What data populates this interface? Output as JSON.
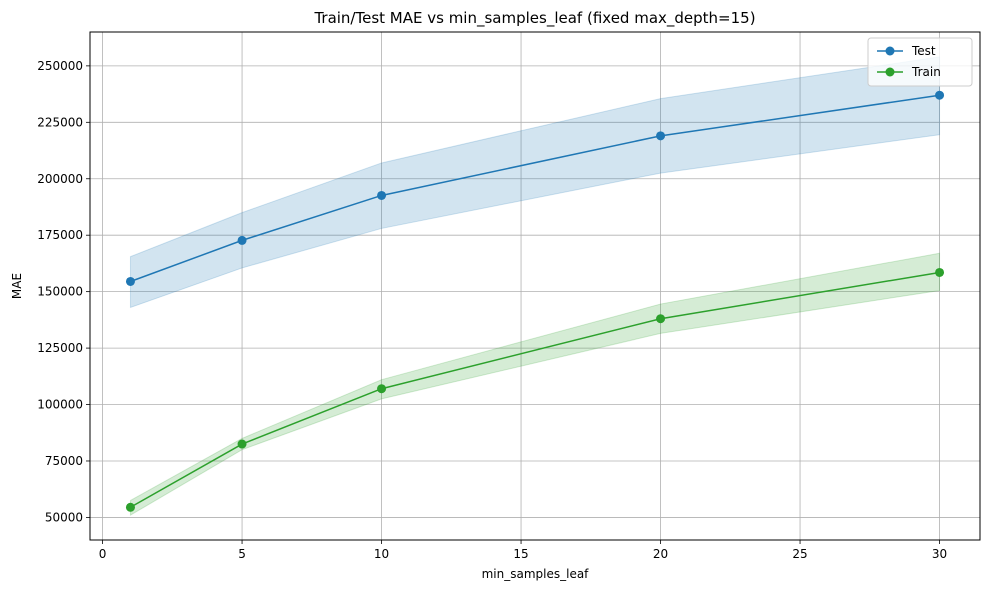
{
  "chart_data": {
    "type": "line",
    "title": "Train/Test MAE vs min_samples_leaf (fixed max_depth=15)",
    "xlabel": "min_samples_leaf",
    "ylabel": "MAE",
    "xlim": [
      -0.45,
      31.45
    ],
    "ylim": [
      40000,
      265000
    ],
    "xticks": [
      0,
      5,
      10,
      15,
      20,
      25,
      30
    ],
    "yticks": [
      50000,
      75000,
      100000,
      125000,
      150000,
      175000,
      200000,
      225000,
      250000
    ],
    "grid": true,
    "legend_position": "top-right",
    "x": [
      1,
      5,
      10,
      20,
      30
    ],
    "series": [
      {
        "name": "Test",
        "color": "#1f77b4",
        "marker": "circle",
        "values": [
          154500,
          172700,
          192600,
          219000,
          237000
        ],
        "band_lower": [
          143000,
          160500,
          178000,
          202500,
          219500
        ],
        "band_upper": [
          165500,
          185000,
          207000,
          235500,
          254000
        ]
      },
      {
        "name": "Train",
        "color": "#2ca02c",
        "marker": "circle",
        "values": [
          54500,
          82500,
          107000,
          138000,
          158500
        ],
        "band_lower": [
          51000,
          80000,
          102500,
          131500,
          150500
        ],
        "band_upper": [
          57500,
          85000,
          111000,
          144500,
          167000
        ]
      }
    ]
  }
}
